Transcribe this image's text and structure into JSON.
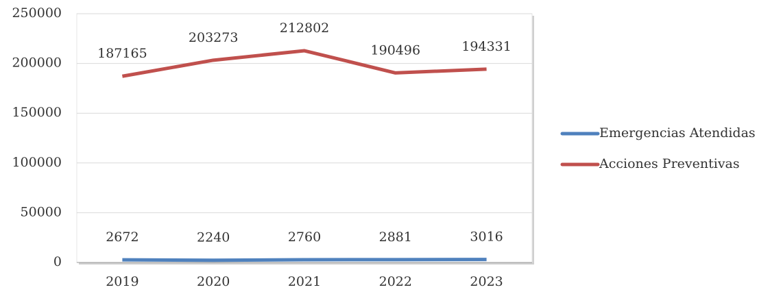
{
  "chart_data": {
    "type": "line",
    "categories": [
      "2019",
      "2020",
      "2021",
      "2022",
      "2023"
    ],
    "series": [
      {
        "name": "Emergencias Atendidas",
        "color": "#4f81bd",
        "values": [
          2672,
          2240,
          2760,
          2881,
          3016
        ]
      },
      {
        "name": "Acciones Preventivas",
        "color": "#c0504d",
        "values": [
          187165,
          203273,
          212802,
          190496,
          194331
        ]
      }
    ],
    "ylim": [
      0,
      250000
    ],
    "yticks": [
      0,
      50000,
      100000,
      150000,
      200000,
      250000
    ],
    "grid": true,
    "legend": "right"
  }
}
